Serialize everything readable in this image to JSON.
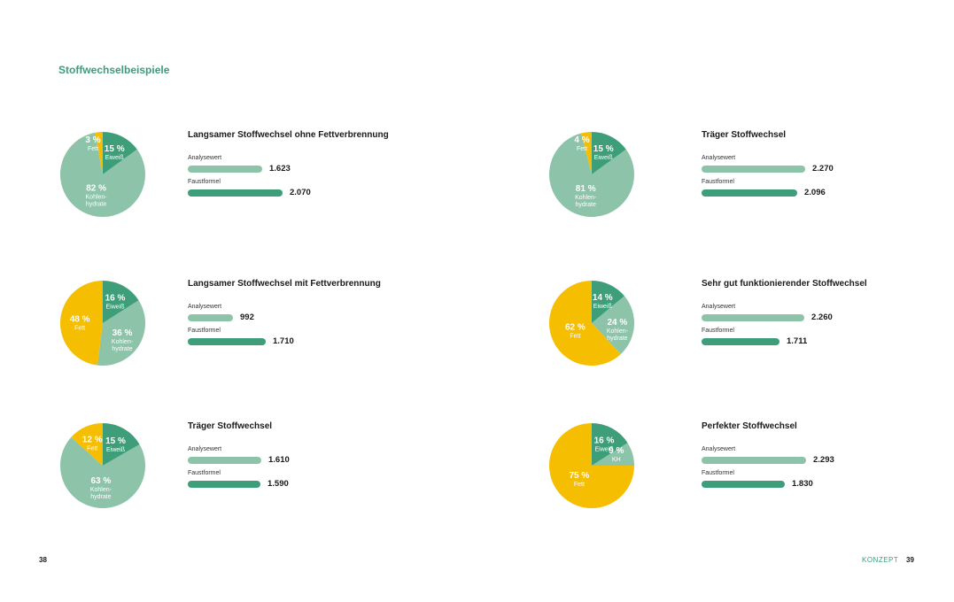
{
  "heading": "Stoffwechselbeispiele",
  "page_left": "38",
  "page_right": "39",
  "section_label": "KONZEPT",
  "colors": {
    "protein": "#3d9e79",
    "carbs": "#8dc3a9",
    "fat": "#f6be00",
    "accent": "#3a9e7a"
  },
  "labels": {
    "analyse": "Analysewert",
    "faust": "Faustformel"
  },
  "chart_data": [
    {
      "type": "pie",
      "title": "Langsamer Stoffwechsel ohne Fettverbrennung",
      "slices": [
        {
          "key": "protein",
          "value": 15,
          "pct": "15 %",
          "label": [
            "Eiweiß"
          ]
        },
        {
          "key": "carbs",
          "value": 82,
          "pct": "82 %",
          "label": [
            "Kohlen-",
            "hydrate"
          ]
        },
        {
          "key": "fat",
          "value": 3,
          "pct": "3 %",
          "label": [
            "Fett"
          ]
        }
      ],
      "bars": {
        "analysewert": 1623,
        "faustformel": 2070,
        "analysewert_text": "1.623",
        "faustformel_text": "2.070"
      }
    },
    {
      "type": "pie",
      "title": "Träger Stoffwechsel",
      "slices": [
        {
          "key": "protein",
          "value": 15,
          "pct": "15 %",
          "label": [
            "Eiweiß"
          ]
        },
        {
          "key": "carbs",
          "value": 81,
          "pct": "81 %",
          "label": [
            "Kohlen-",
            "hydrate"
          ]
        },
        {
          "key": "fat",
          "value": 4,
          "pct": "4 %",
          "label": [
            "Fett"
          ]
        }
      ],
      "bars": {
        "analysewert": 2270,
        "faustformel": 2096,
        "analysewert_text": "2.270",
        "faustformel_text": "2.096"
      }
    },
    {
      "type": "pie",
      "title": "Langsamer Stoffwechsel mit Fettverbrennung",
      "slices": [
        {
          "key": "protein",
          "value": 16,
          "pct": "16 %",
          "label": [
            "Eiweiß"
          ]
        },
        {
          "key": "carbs",
          "value": 36,
          "pct": "36 %",
          "label": [
            "Kohlen-",
            "hydrate"
          ]
        },
        {
          "key": "fat",
          "value": 48,
          "pct": "48 %",
          "label": [
            "Fett"
          ]
        }
      ],
      "bars": {
        "analysewert": 992,
        "faustformel": 1710,
        "analysewert_text": "992",
        "faustformel_text": "1.710"
      }
    },
    {
      "type": "pie",
      "title": "Sehr gut funktionierender Stoffwechsel",
      "slices": [
        {
          "key": "protein",
          "value": 14,
          "pct": "14 %",
          "label": [
            "Eiweiß"
          ]
        },
        {
          "key": "carbs",
          "value": 24,
          "pct": "24 %",
          "label": [
            "Kohlen-",
            "hydrate"
          ]
        },
        {
          "key": "fat",
          "value": 62,
          "pct": "62 %",
          "label": [
            "Fett"
          ]
        }
      ],
      "bars": {
        "analysewert": 2260,
        "faustformel": 1711,
        "analysewert_text": "2.260",
        "faustformel_text": "1.711"
      }
    },
    {
      "type": "pie",
      "title": "Träger Stoffwechsel",
      "slices": [
        {
          "key": "protein",
          "value": 15,
          "pct": "15 %",
          "label": [
            "Eiweiß"
          ]
        },
        {
          "key": "carbs",
          "value": 63,
          "pct": "63 %",
          "label": [
            "Kohlen-",
            "hydrate"
          ]
        },
        {
          "key": "fat",
          "value": 12,
          "pct": "12 %",
          "label": [
            "Fett"
          ]
        }
      ],
      "bars": {
        "analysewert": 1610,
        "faustformel": 1590,
        "analysewert_text": "1.610",
        "faustformel_text": "1.590"
      }
    },
    {
      "type": "pie",
      "title": "Perfekter Stoffwechsel",
      "slices": [
        {
          "key": "protein",
          "value": 16,
          "pct": "16 %",
          "label": [
            "Eiweiß"
          ]
        },
        {
          "key": "carbs",
          "value": 9,
          "pct": "9 %",
          "label": [
            "KH"
          ]
        },
        {
          "key": "fat",
          "value": 75,
          "pct": "75 %",
          "label": [
            "Fett"
          ]
        }
      ],
      "bars": {
        "analysewert": 2293,
        "faustformel": 1830,
        "analysewert_text": "2.293",
        "faustformel_text": "1.830"
      }
    }
  ]
}
